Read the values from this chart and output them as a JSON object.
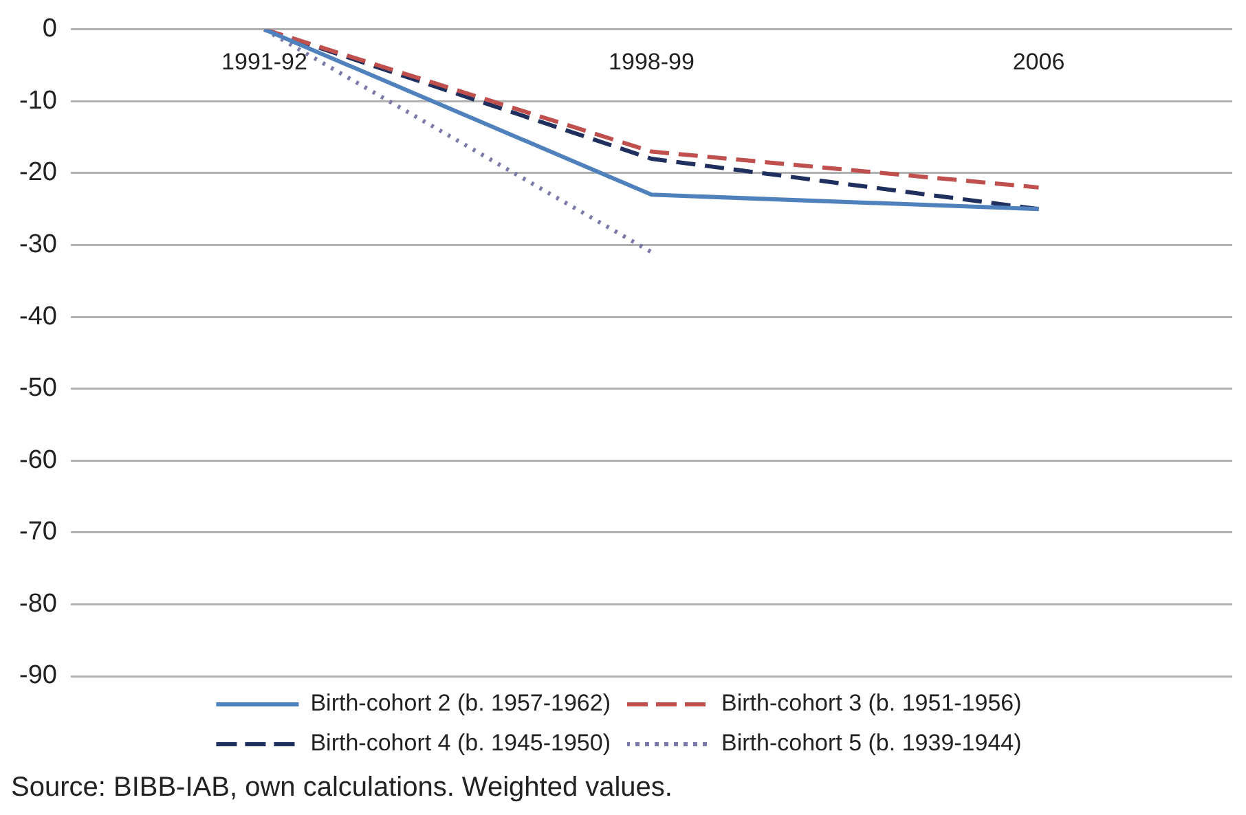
{
  "chart_data": {
    "type": "line",
    "categories": [
      "1991-92",
      "1998-99",
      "2006"
    ],
    "series": [
      {
        "name": "Birth-cohort 2 (b. 1957-1962)",
        "color": "#4f81bd",
        "line_style": "solid",
        "values": [
          0,
          -23,
          -25
        ]
      },
      {
        "name": "Birth-cohort 3 (b. 1951-1956)",
        "color": "#c0504d",
        "line_style": "dashed",
        "values": [
          0,
          -17,
          -22
        ]
      },
      {
        "name": "Birth-cohort 4 (b. 1945-1950)",
        "color": "#1f2f5e",
        "line_style": "dashed",
        "values": [
          0,
          -18,
          -25
        ]
      },
      {
        "name": "Birth-cohort 5 (b. 1939-1944)",
        "color": "#7a7aa8",
        "line_style": "dotted",
        "values": [
          0,
          -31,
          null
        ]
      }
    ],
    "ylim": [
      -90,
      0
    ],
    "yticks": [
      0,
      -10,
      -20,
      -30,
      -40,
      -50,
      -60,
      -70,
      -80,
      -90
    ],
    "grid": "y",
    "legend": "bottom",
    "marker": "none",
    "annotations": [
      "Source: BIBB-IAB, own calculations. Weighted values."
    ]
  }
}
